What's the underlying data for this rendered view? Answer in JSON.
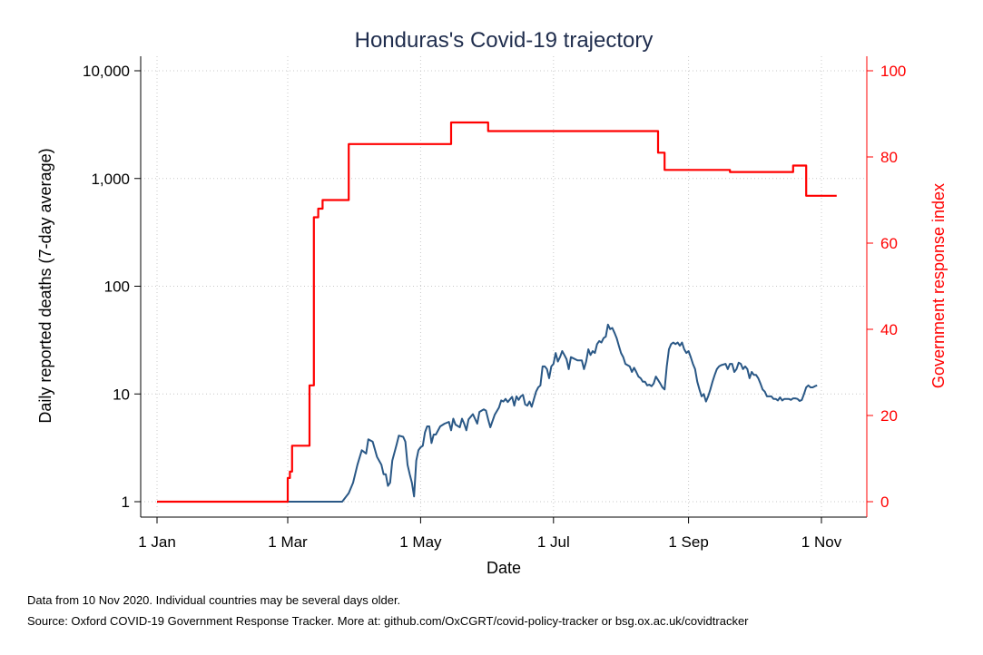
{
  "chart_data": {
    "type": "line",
    "title": "Honduras's Covid-19 trajectory",
    "xlabel": "Date",
    "ylabel_left": "Daily reported deaths (7-day average)",
    "ylabel_right": "Government response index",
    "x_ticks": [
      "1 Jan",
      "1 Mar",
      "1 May",
      "1 Jul",
      "1 Sep",
      "1 Nov"
    ],
    "x_tick_days": [
      0,
      60,
      121,
      182,
      244,
      305
    ],
    "x_range_days": [
      0,
      314
    ],
    "y_left_scale": "log",
    "y_left_ticks": [
      "1",
      "10",
      "100",
      "1,000",
      "10,000"
    ],
    "y_left_tick_values": [
      1,
      10,
      100,
      1000,
      10000
    ],
    "y_right_ticks": [
      "0",
      "20",
      "40",
      "60",
      "80",
      "100"
    ],
    "y_right_tick_values": [
      0,
      20,
      40,
      60,
      80,
      100
    ],
    "y_right_range": [
      0,
      100
    ],
    "grid": true,
    "colors": {
      "deaths": "#2a5886",
      "response": "#ff0000",
      "title": "#1f2d4d"
    },
    "series": [
      {
        "axis": "left",
        "color": "#2a5886",
        "points": [
          [
            0,
            1
          ],
          [
            85,
            1
          ],
          [
            88,
            1.2
          ],
          [
            90,
            1.5
          ],
          [
            92,
            2.2
          ],
          [
            94,
            3
          ],
          [
            96,
            2.8
          ],
          [
            97,
            3.8
          ],
          [
            99,
            3.6
          ],
          [
            101,
            2.6
          ],
          [
            103,
            2.2
          ],
          [
            104,
            1.8
          ],
          [
            105,
            1.8
          ],
          [
            106,
            1.4
          ],
          [
            107,
            1.5
          ],
          [
            108,
            2.4
          ],
          [
            110,
            3.4
          ],
          [
            111,
            4.1
          ],
          [
            113,
            4
          ],
          [
            114,
            3.6
          ],
          [
            115,
            2.2
          ],
          [
            116,
            1.8
          ],
          [
            117,
            1.5
          ],
          [
            118,
            1.12
          ],
          [
            119,
            2.4
          ],
          [
            120,
            3
          ],
          [
            121,
            3.2
          ],
          [
            122,
            3.3
          ],
          [
            123,
            4.4
          ],
          [
            124,
            5
          ],
          [
            125,
            5
          ],
          [
            126,
            3.5
          ],
          [
            127,
            4.2
          ],
          [
            128,
            4.2
          ],
          [
            130,
            5
          ],
          [
            132,
            5.3
          ],
          [
            134,
            5.5
          ],
          [
            135,
            4.6
          ],
          [
            136,
            5.9
          ],
          [
            137,
            5.2
          ],
          [
            139,
            4.9
          ],
          [
            140,
            5.9
          ],
          [
            141,
            5.3
          ],
          [
            142,
            4.6
          ],
          [
            143,
            5.8
          ],
          [
            145,
            6.5
          ],
          [
            147,
            5.3
          ],
          [
            148,
            6.8
          ],
          [
            149,
            7
          ],
          [
            150,
            7.2
          ],
          [
            151,
            7
          ],
          [
            152,
            5.8
          ],
          [
            153,
            4.9
          ],
          [
            155,
            6.4
          ],
          [
            157,
            7.5
          ],
          [
            158,
            8.7
          ],
          [
            159,
            8.5
          ],
          [
            160,
            9
          ],
          [
            161,
            8.4
          ],
          [
            163,
            9.4
          ],
          [
            164,
            7.8
          ],
          [
            165,
            9.5
          ],
          [
            166,
            8.8
          ],
          [
            167,
            9.5
          ],
          [
            168,
            9.8
          ],
          [
            169,
            8
          ],
          [
            170,
            7.8
          ],
          [
            171,
            8.5
          ],
          [
            172,
            7.6
          ],
          [
            174,
            10.5
          ],
          [
            175,
            11.5
          ],
          [
            176,
            12
          ],
          [
            177,
            18
          ],
          [
            178,
            18
          ],
          [
            179,
            17
          ],
          [
            180,
            14
          ],
          [
            181,
            18
          ],
          [
            182,
            19
          ],
          [
            183,
            24
          ],
          [
            184,
            20
          ],
          [
            185,
            22
          ],
          [
            186,
            25
          ],
          [
            187,
            23
          ],
          [
            188,
            21
          ],
          [
            189,
            17
          ],
          [
            190,
            22
          ],
          [
            191,
            21.5
          ],
          [
            193,
            20.5
          ],
          [
            195,
            20.5
          ],
          [
            196,
            17
          ],
          [
            197,
            20
          ],
          [
            198,
            26
          ],
          [
            199,
            23
          ],
          [
            200,
            25
          ],
          [
            201,
            24
          ],
          [
            202,
            29
          ],
          [
            203,
            31
          ],
          [
            204,
            30
          ],
          [
            205,
            33
          ],
          [
            206,
            34
          ],
          [
            207,
            44
          ],
          [
            208,
            40
          ],
          [
            209,
            41
          ],
          [
            210,
            37
          ],
          [
            211,
            33
          ],
          [
            212,
            28
          ],
          [
            213,
            24
          ],
          [
            214,
            22
          ],
          [
            215,
            19
          ],
          [
            216,
            18.5
          ],
          [
            217,
            18
          ],
          [
            218,
            16
          ],
          [
            219,
            17.5
          ],
          [
            220,
            16
          ],
          [
            221,
            14.5
          ],
          [
            222,
            14
          ],
          [
            223,
            13
          ],
          [
            224,
            13
          ],
          [
            225,
            12
          ],
          [
            226,
            12.2
          ],
          [
            227,
            11.8
          ],
          [
            228,
            12.5
          ],
          [
            229,
            14.5
          ],
          [
            230,
            13.5
          ],
          [
            231,
            12.5
          ],
          [
            232,
            11.5
          ],
          [
            233,
            11
          ],
          [
            234,
            18
          ],
          [
            235,
            26
          ],
          [
            236,
            29
          ],
          [
            237,
            30
          ],
          [
            238,
            29
          ],
          [
            239,
            30
          ],
          [
            240,
            28
          ],
          [
            241,
            30
          ],
          [
            242,
            26
          ],
          [
            243,
            24
          ],
          [
            244,
            25
          ],
          [
            245,
            22
          ],
          [
            246,
            19
          ],
          [
            247,
            17
          ],
          [
            248,
            13
          ],
          [
            249,
            11
          ],
          [
            250,
            9.5
          ],
          [
            251,
            10
          ],
          [
            252,
            8.5
          ],
          [
            253,
            9.5
          ],
          [
            254,
            11
          ],
          [
            255,
            13
          ],
          [
            256,
            15
          ],
          [
            257,
            17
          ],
          [
            258,
            18
          ],
          [
            259,
            18.5
          ],
          [
            261,
            19
          ],
          [
            262,
            17
          ],
          [
            263,
            19
          ],
          [
            264,
            19
          ],
          [
            265,
            16
          ],
          [
            266,
            17
          ],
          [
            267,
            19.5
          ],
          [
            268,
            19
          ],
          [
            269,
            17
          ],
          [
            270,
            18
          ],
          [
            271,
            17
          ],
          [
            272,
            14
          ],
          [
            273,
            16
          ],
          [
            274,
            15
          ],
          [
            275,
            15
          ],
          [
            276,
            14
          ],
          [
            277,
            12.5
          ],
          [
            278,
            11
          ],
          [
            279,
            10.5
          ],
          [
            280,
            9.5
          ],
          [
            281,
            9.5
          ],
          [
            282,
            9.5
          ],
          [
            283,
            9
          ],
          [
            284,
            9
          ],
          [
            285,
            8.7
          ],
          [
            286,
            9.3
          ],
          [
            287,
            8.7
          ],
          [
            288,
            9
          ],
          [
            289,
            9
          ],
          [
            290,
            9
          ],
          [
            291,
            8.8
          ],
          [
            292,
            9.1
          ],
          [
            293,
            9.1
          ],
          [
            294,
            9
          ],
          [
            295,
            8.6
          ],
          [
            296,
            8.8
          ],
          [
            297,
            10
          ],
          [
            298,
            11.5
          ],
          [
            299,
            12
          ],
          [
            300,
            11.5
          ],
          [
            301,
            11.5
          ],
          [
            302,
            11.8
          ],
          [
            303,
            12
          ]
        ]
      },
      {
        "axis": "right",
        "color": "#ff0000",
        "points": [
          [
            0,
            0
          ],
          [
            60,
            0
          ],
          [
            60,
            5.5
          ],
          [
            61,
            5.5
          ],
          [
            61,
            7
          ],
          [
            62,
            7
          ],
          [
            62,
            13
          ],
          [
            70,
            13
          ],
          [
            70,
            27
          ],
          [
            72,
            27
          ],
          [
            72,
            66
          ],
          [
            74,
            66
          ],
          [
            74,
            68
          ],
          [
            76,
            68
          ],
          [
            76,
            70
          ],
          [
            88,
            70
          ],
          [
            88,
            83
          ],
          [
            135,
            83
          ],
          [
            135,
            88
          ],
          [
            152,
            88
          ],
          [
            152,
            86
          ],
          [
            230,
            86
          ],
          [
            230,
            81
          ],
          [
            233,
            81
          ],
          [
            233,
            77
          ],
          [
            263,
            77
          ],
          [
            263,
            76.5
          ],
          [
            292,
            76.5
          ],
          [
            292,
            78
          ],
          [
            298,
            78
          ],
          [
            298,
            71
          ],
          [
            312,
            71
          ]
        ]
      }
    ]
  },
  "footer": {
    "note": "Data from 10 Nov 2020. Individual countries may be several days older.",
    "source": "Source: Oxford COVID-19 Government Response Tracker. More at: github.com/OxCGRT/covid-policy-tracker or bsg.ox.ac.uk/covidtracker"
  }
}
